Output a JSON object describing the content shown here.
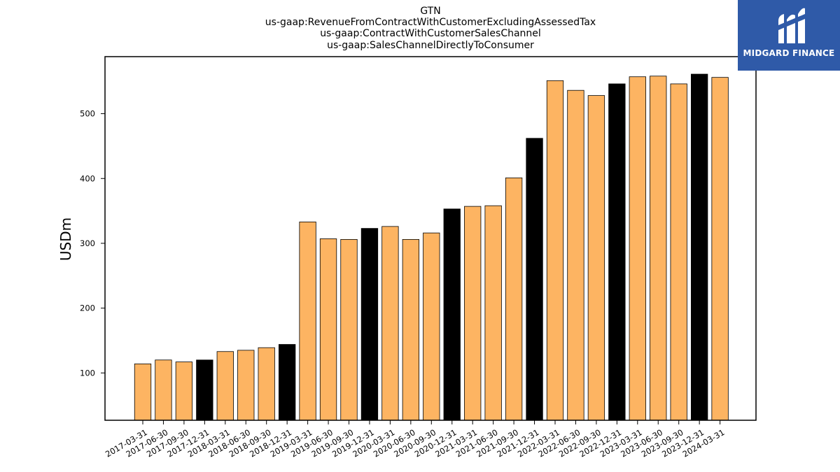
{
  "chart_data": {
    "type": "bar",
    "title": [
      "GTN",
      "us-gaap:RevenueFromContractWithCustomerExcludingAssessedTax",
      "us-gaap:ContractWithCustomerSalesChannel",
      "us-gaap:SalesChannelDirectlyToConsumer"
    ],
    "xlabel": "",
    "ylabel": "USDm",
    "ylim": [
      27,
      588
    ],
    "yticks": [
      100,
      200,
      300,
      400,
      500
    ],
    "grid": false,
    "categories": [
      "2017-03-31",
      "2017-06-30",
      "2017-09-30",
      "2017-12-31",
      "2018-03-31",
      "2018-06-30",
      "2018-09-30",
      "2018-12-31",
      "2019-03-31",
      "2019-06-30",
      "2019-09-30",
      "2019-12-31",
      "2020-03-31",
      "2020-06-30",
      "2020-09-30",
      "2020-12-31",
      "2021-03-31",
      "2021-06-30",
      "2021-09-30",
      "2021-12-31",
      "2022-03-31",
      "2022-06-30",
      "2022-09-30",
      "2022-12-31",
      "2023-03-31",
      "2023-06-30",
      "2023-09-30",
      "2023-12-31",
      "2024-03-31"
    ],
    "values": [
      114,
      120,
      117,
      120,
      133,
      135,
      139,
      144,
      333,
      307,
      306,
      323,
      326,
      306,
      316,
      353,
      357,
      358,
      401,
      462,
      551,
      536,
      528,
      546,
      557,
      558,
      546,
      561,
      556
    ],
    "colors": {
      "quarter": "#fdb462",
      "year_end": "#000000",
      "edge": "#000000"
    }
  },
  "logo": {
    "text": "MIDGARD FINANCE",
    "icon": "midgard-m-logo-icon",
    "background": "#2f5aa8"
  }
}
